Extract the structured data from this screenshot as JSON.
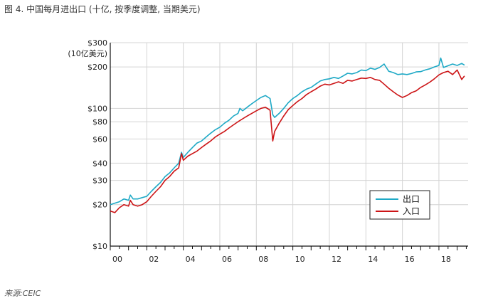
{
  "figure": {
    "title": "图 4. 中国每月进出口 (十亿, 按季度调整, 当期美元)",
    "source": "来源:CEIC"
  },
  "colors": {
    "exports": "#1ea9c6",
    "imports": "#cc1416",
    "grid": "#d4d4d4",
    "axis": "#111111"
  },
  "chart_data": {
    "type": "line",
    "title": "图 4. 中国每月进出口 (十亿, 按季度调整, 当期美元)",
    "ylabel": "(10亿美元)",
    "xlabel": "",
    "yscale": "log",
    "ylim": [
      10,
      300
    ],
    "xlim": [
      2000,
      2019.6
    ],
    "grid": true,
    "legend_position": "lower-right",
    "y_ticks": [
      {
        "value": 10,
        "label": "$10"
      },
      {
        "value": 20,
        "label": "$20"
      },
      {
        "value": 30,
        "label": "$30"
      },
      {
        "value": 40,
        "label": "$40"
      },
      {
        "value": 60,
        "label": "$60"
      },
      {
        "value": 80,
        "label": "$80"
      },
      {
        "value": 100,
        "label": "$100"
      },
      {
        "value": 200,
        "label": "$200"
      },
      {
        "value": 300,
        "label": "$300"
      }
    ],
    "x_ticks": [
      {
        "value": 2000,
        "label": "00"
      },
      {
        "value": 2002,
        "label": "02"
      },
      {
        "value": 2004,
        "label": "04"
      },
      {
        "value": 2006,
        "label": "06"
      },
      {
        "value": 2008,
        "label": "08"
      },
      {
        "value": 2010,
        "label": "10"
      },
      {
        "value": 2012,
        "label": "12"
      },
      {
        "value": 2014,
        "label": "14"
      },
      {
        "value": 2016,
        "label": "16"
      },
      {
        "value": 2018,
        "label": "18"
      }
    ],
    "series": [
      {
        "name": "出口",
        "color": "#1ea9c6",
        "x": [
          2000.0,
          2000.25,
          2000.5,
          2000.75,
          2001.0,
          2001.1,
          2001.25,
          2001.5,
          2001.75,
          2002.0,
          2002.25,
          2002.5,
          2002.75,
          2003.0,
          2003.25,
          2003.5,
          2003.75,
          2003.9,
          2004.0,
          2004.25,
          2004.5,
          2004.75,
          2005.0,
          2005.25,
          2005.5,
          2005.75,
          2006.0,
          2006.25,
          2006.5,
          2006.75,
          2007.0,
          2007.1,
          2007.25,
          2007.5,
          2007.75,
          2008.0,
          2008.25,
          2008.5,
          2008.75,
          2008.9,
          2009.0,
          2009.25,
          2009.5,
          2009.75,
          2010.0,
          2010.25,
          2010.5,
          2010.75,
          2011.0,
          2011.25,
          2011.5,
          2011.75,
          2012.0,
          2012.25,
          2012.5,
          2012.75,
          2013.0,
          2013.25,
          2013.5,
          2013.75,
          2014.0,
          2014.25,
          2014.5,
          2014.75,
          2015.0,
          2015.25,
          2015.5,
          2015.75,
          2016.0,
          2016.25,
          2016.5,
          2016.75,
          2017.0,
          2017.25,
          2017.5,
          2017.75,
          2018.0,
          2018.1,
          2018.25,
          2018.5,
          2018.75,
          2019.0,
          2019.25,
          2019.4
        ],
        "y": [
          20,
          20.5,
          21,
          22,
          21.5,
          23.5,
          22,
          22,
          22.5,
          23,
          25,
          27,
          29,
          32,
          34,
          37,
          40,
          48,
          44,
          48,
          52,
          56,
          58,
          62,
          66,
          70,
          73,
          78,
          82,
          88,
          92,
          100,
          96,
          102,
          108,
          114,
          120,
          124,
          118,
          90,
          86,
          92,
          100,
          110,
          118,
          124,
          132,
          138,
          142,
          150,
          158,
          162,
          164,
          168,
          165,
          172,
          180,
          178,
          182,
          190,
          188,
          196,
          192,
          198,
          210,
          186,
          182,
          176,
          178,
          176,
          179,
          184,
          185,
          190,
          194,
          200,
          205,
          232,
          198,
          204,
          210,
          205,
          212,
          206
        ]
      },
      {
        "name": "入口",
        "color": "#cc1416",
        "x": [
          2000.0,
          2000.25,
          2000.5,
          2000.75,
          2001.0,
          2001.1,
          2001.25,
          2001.5,
          2001.75,
          2002.0,
          2002.25,
          2002.5,
          2002.75,
          2003.0,
          2003.25,
          2003.5,
          2003.75,
          2003.9,
          2004.0,
          2004.25,
          2004.5,
          2004.75,
          2005.0,
          2005.25,
          2005.5,
          2005.75,
          2006.0,
          2006.25,
          2006.5,
          2006.75,
          2007.0,
          2007.25,
          2007.5,
          2007.75,
          2008.0,
          2008.25,
          2008.5,
          2008.75,
          2008.9,
          2009.0,
          2009.25,
          2009.5,
          2009.75,
          2010.0,
          2010.25,
          2010.5,
          2010.75,
          2011.0,
          2011.25,
          2011.5,
          2011.75,
          2012.0,
          2012.25,
          2012.5,
          2012.75,
          2013.0,
          2013.25,
          2013.5,
          2013.75,
          2014.0,
          2014.25,
          2014.5,
          2014.75,
          2015.0,
          2015.25,
          2015.5,
          2015.75,
          2016.0,
          2016.25,
          2016.5,
          2016.75,
          2017.0,
          2017.25,
          2017.5,
          2017.75,
          2018.0,
          2018.25,
          2018.5,
          2018.75,
          2019.0,
          2019.25,
          2019.4
        ],
        "y": [
          18,
          17.5,
          19,
          20,
          19.5,
          21.5,
          20,
          19.5,
          20,
          21,
          23,
          25,
          27,
          30,
          32,
          35,
          37,
          47,
          42,
          45,
          47,
          49,
          52,
          55,
          58,
          62,
          65,
          68,
          72,
          76,
          80,
          84,
          88,
          92,
          96,
          100,
          102,
          97,
          58,
          68,
          78,
          88,
          98,
          105,
          112,
          118,
          126,
          132,
          138,
          145,
          150,
          148,
          152,
          156,
          152,
          160,
          158,
          162,
          166,
          165,
          168,
          162,
          160,
          150,
          140,
          132,
          125,
          120,
          124,
          130,
          134,
          142,
          148,
          155,
          164,
          175,
          182,
          186,
          176,
          190,
          162,
          172
        ]
      }
    ]
  }
}
